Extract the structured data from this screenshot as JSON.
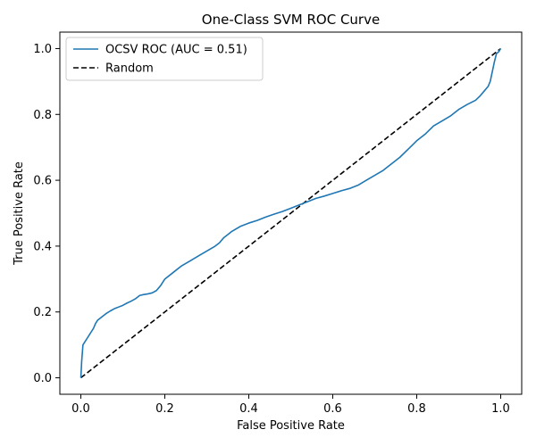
{
  "chart_data": {
    "type": "line",
    "title": "One-Class SVM ROC Curve",
    "xlabel": "False Positive Rate",
    "ylabel": "True Positive Rate",
    "xlim": [
      -0.05,
      1.05
    ],
    "ylim": [
      -0.05,
      1.05
    ],
    "xticks": [
      0.0,
      0.2,
      0.4,
      0.6,
      0.8,
      1.0
    ],
    "yticks": [
      0.0,
      0.2,
      0.4,
      0.6,
      0.8,
      1.0
    ],
    "xtick_labels": [
      "0.0",
      "0.2",
      "0.4",
      "0.6",
      "0.8",
      "1.0"
    ],
    "ytick_labels": [
      "0.0",
      "0.2",
      "0.4",
      "0.6",
      "0.8",
      "1.0"
    ],
    "grid": false,
    "legend_position": "top-left",
    "series": [
      {
        "name": "OCSV ROC (AUC = 0.51)",
        "color": "#1f77b4",
        "style": "solid",
        "x": [
          0.0,
          0.002,
          0.005,
          0.01,
          0.015,
          0.02,
          0.025,
          0.03,
          0.035,
          0.04,
          0.05,
          0.06,
          0.07,
          0.08,
          0.09,
          0.1,
          0.11,
          0.12,
          0.13,
          0.14,
          0.15,
          0.16,
          0.17,
          0.18,
          0.19,
          0.2,
          0.22,
          0.24,
          0.26,
          0.28,
          0.3,
          0.32,
          0.33,
          0.34,
          0.35,
          0.36,
          0.38,
          0.4,
          0.42,
          0.44,
          0.46,
          0.48,
          0.5,
          0.52,
          0.54,
          0.56,
          0.58,
          0.6,
          0.62,
          0.64,
          0.66,
          0.68,
          0.7,
          0.72,
          0.74,
          0.76,
          0.78,
          0.8,
          0.82,
          0.84,
          0.86,
          0.88,
          0.9,
          0.92,
          0.94,
          0.95,
          0.96,
          0.97,
          0.975,
          0.98,
          0.985,
          0.99,
          0.995,
          1.0
        ],
        "y": [
          0.0,
          0.05,
          0.1,
          0.11,
          0.12,
          0.13,
          0.14,
          0.15,
          0.165,
          0.175,
          0.185,
          0.195,
          0.203,
          0.21,
          0.215,
          0.22,
          0.227,
          0.233,
          0.24,
          0.25,
          0.253,
          0.255,
          0.258,
          0.265,
          0.28,
          0.3,
          0.32,
          0.34,
          0.355,
          0.37,
          0.385,
          0.4,
          0.41,
          0.425,
          0.435,
          0.445,
          0.46,
          0.47,
          0.478,
          0.488,
          0.497,
          0.505,
          0.515,
          0.525,
          0.535,
          0.545,
          0.552,
          0.56,
          0.568,
          0.575,
          0.585,
          0.6,
          0.615,
          0.63,
          0.65,
          0.67,
          0.695,
          0.72,
          0.74,
          0.765,
          0.78,
          0.795,
          0.815,
          0.83,
          0.843,
          0.855,
          0.87,
          0.885,
          0.9,
          0.93,
          0.96,
          0.985,
          0.99,
          1.0
        ]
      },
      {
        "name": "Random",
        "color": "#000000",
        "style": "dashed",
        "x": [
          0.0,
          1.0
        ],
        "y": [
          0.0,
          1.0
        ]
      }
    ]
  }
}
